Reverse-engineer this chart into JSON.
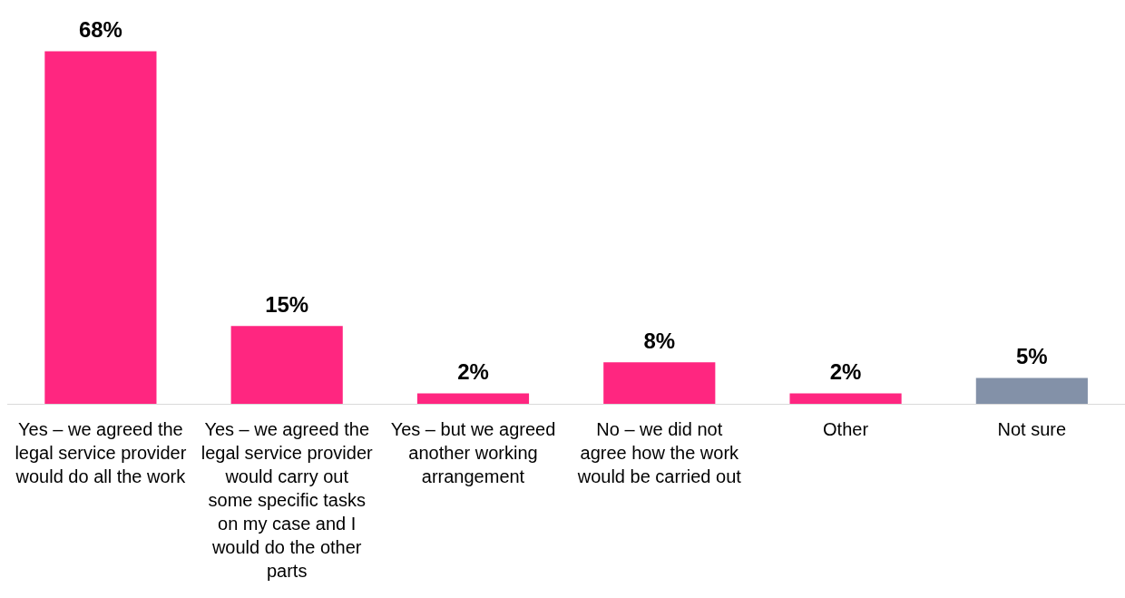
{
  "chart_data": {
    "type": "bar",
    "categories": [
      "Yes – we agreed the legal service provider would do all the work",
      "Yes – we agreed the legal service provider would carry out some specific tasks on my case and I would do the other parts",
      "Yes – but we agreed another working arrangement",
      "No – we did not agree how the work would be carried out",
      "Other",
      "Not sure"
    ],
    "values": [
      68,
      15,
      2,
      8,
      2,
      5
    ],
    "colors": [
      "#ff2680",
      "#ff2680",
      "#ff2680",
      "#ff2680",
      "#ff2680",
      "#8391a8"
    ],
    "value_labels": [
      "68%",
      "15%",
      "2%",
      "8%",
      "2%",
      "5%"
    ],
    "grid": false,
    "legend": false
  }
}
